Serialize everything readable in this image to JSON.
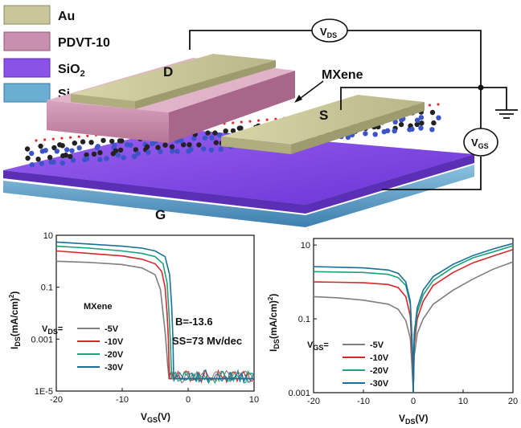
{
  "colors": {
    "au": "#c9c79a",
    "pdvt": "#c98fae",
    "sio2": "#8a52e6",
    "si": "#6aaed3",
    "mxene": "#3d53c8",
    "c5": "#7f7f7f",
    "c10": "#d9262a",
    "c20": "#1aa27a",
    "c30": "#1c6f99"
  },
  "legend": [
    {
      "key": "au",
      "label": "Au"
    },
    {
      "key": "pdvt",
      "label": "PDVT-10"
    },
    {
      "key": "sio2",
      "label": "SiO",
      "sub": "2"
    },
    {
      "key": "si",
      "label": "Si"
    }
  ],
  "device": {
    "drain": "D",
    "source": "S",
    "gate": "G",
    "mxene": "MXene",
    "vds": {
      "main": "V",
      "sub": "DS"
    },
    "vgs": {
      "main": "V",
      "sub": "GS"
    }
  },
  "chart_data": [
    {
      "type": "line",
      "xlabel": "V_GS(V)",
      "ylabel": "I_DS(mA/cm^2)",
      "xlim": [
        -20,
        10
      ],
      "ylim": [
        1e-05,
        10
      ],
      "yscale": "log",
      "xticks": [
        -20,
        -10,
        0,
        10
      ],
      "yticks": [
        "10",
        "0.1",
        "0.001",
        "1E-5"
      ],
      "legend_title": "MXene",
      "legend_prefix": "V_DS=",
      "annotations": [
        "B=-13.6",
        "SS=73 Mv/dec"
      ],
      "series": [
        {
          "name": "-5V",
          "key": "c5",
          "x": [
            -20,
            -15,
            -10,
            -7,
            -5,
            -4.2,
            -3.8,
            -3.5,
            -3.3,
            -3.1,
            -2.9,
            0,
            5,
            10
          ],
          "y": [
            1,
            0.9,
            0.75,
            0.55,
            0.3,
            0.08,
            0.01,
            0.002,
            0.0005,
            0.0001,
            3e-05,
            3e-05,
            3e-05,
            3e-05
          ]
        },
        {
          "name": "-10V",
          "key": "c10",
          "x": [
            -20,
            -15,
            -10,
            -7,
            -5,
            -4,
            -3.5,
            -3.2,
            -3,
            -2.9,
            -2.8,
            0,
            5,
            10
          ],
          "y": [
            2.5,
            2,
            1.6,
            1.2,
            0.8,
            0.4,
            0.1,
            0.01,
            0.001,
            0.0001,
            3e-05,
            3e-05,
            3e-05,
            3e-05
          ]
        },
        {
          "name": "-20V",
          "key": "c20",
          "x": [
            -20,
            -15,
            -10,
            -7,
            -5,
            -3.8,
            -3.2,
            -2.9,
            -2.7,
            -2.5,
            0,
            5,
            10
          ],
          "y": [
            3.8,
            3.2,
            2.5,
            2,
            1.5,
            0.8,
            0.15,
            0.01,
            0.0008,
            3e-05,
            3e-05,
            3e-05,
            3e-05
          ]
        },
        {
          "name": "-30V",
          "key": "c30",
          "x": [
            -20,
            -15,
            -10,
            -7,
            -5,
            -3.5,
            -2.8,
            -2.5,
            -2.3,
            -2.2,
            0,
            5,
            10
          ],
          "y": [
            5.5,
            4.6,
            3.8,
            3.2,
            2.5,
            1.5,
            0.3,
            0.02,
            0.001,
            3e-05,
            3e-05,
            3e-05,
            3e-05
          ]
        }
      ]
    },
    {
      "type": "line",
      "xlabel": "V_DS(V)",
      "ylabel": "I_DS(mA/cm^2)",
      "xlim": [
        -20,
        20
      ],
      "ylim": [
        0.001,
        15
      ],
      "yscale": "log",
      "xticks": [
        -20,
        -10,
        0,
        10,
        20
      ],
      "yticks": [
        "10",
        "0.1",
        "0.001"
      ],
      "legend_prefix": "V_GS=",
      "series": [
        {
          "name": "-5V",
          "key": "c5",
          "x": [
            -20,
            -15,
            -10,
            -5,
            -3,
            -1.5,
            -0.6,
            -0.1,
            0,
            0.2,
            0.8,
            2,
            4,
            8,
            12,
            16,
            20
          ],
          "y": [
            0.4,
            0.37,
            0.32,
            0.25,
            0.18,
            0.09,
            0.03,
            0.002,
            0.001,
            0.01,
            0.04,
            0.1,
            0.25,
            0.6,
            1.2,
            2.2,
            3.5
          ]
        },
        {
          "name": "-10V",
          "key": "c10",
          "x": [
            -20,
            -15,
            -10,
            -5,
            -3,
            -1.5,
            -0.6,
            -0.1,
            0,
            0.2,
            0.8,
            2,
            4,
            8,
            12,
            16,
            20
          ],
          "y": [
            1,
            0.98,
            0.95,
            0.85,
            0.7,
            0.4,
            0.12,
            0.005,
            0.001,
            0.02,
            0.1,
            0.3,
            0.8,
            1.8,
            3.3,
            5,
            7.5
          ]
        },
        {
          "name": "-20V",
          "key": "c20",
          "x": [
            -20,
            -15,
            -10,
            -5,
            -3,
            -1.5,
            -0.6,
            -0.1,
            0,
            0.2,
            0.8,
            2,
            4,
            8,
            12,
            16,
            20
          ],
          "y": [
            1.9,
            1.85,
            1.8,
            1.6,
            1.3,
            0.8,
            0.25,
            0.008,
            0.001,
            0.03,
            0.15,
            0.45,
            1.1,
            2.5,
            4.5,
            6.5,
            9.5
          ]
        },
        {
          "name": "-30V",
          "key": "c30",
          "x": [
            -20,
            -15,
            -10,
            -5,
            -3,
            -1.5,
            -0.6,
            -0.1,
            0,
            0.2,
            0.8,
            2,
            4,
            8,
            12,
            16,
            20
          ],
          "y": [
            2.6,
            2.5,
            2.4,
            2.1,
            1.7,
            1.0,
            0.3,
            0.01,
            0.001,
            0.04,
            0.2,
            0.6,
            1.4,
            3,
            5.2,
            7.8,
            11
          ]
        }
      ]
    }
  ]
}
